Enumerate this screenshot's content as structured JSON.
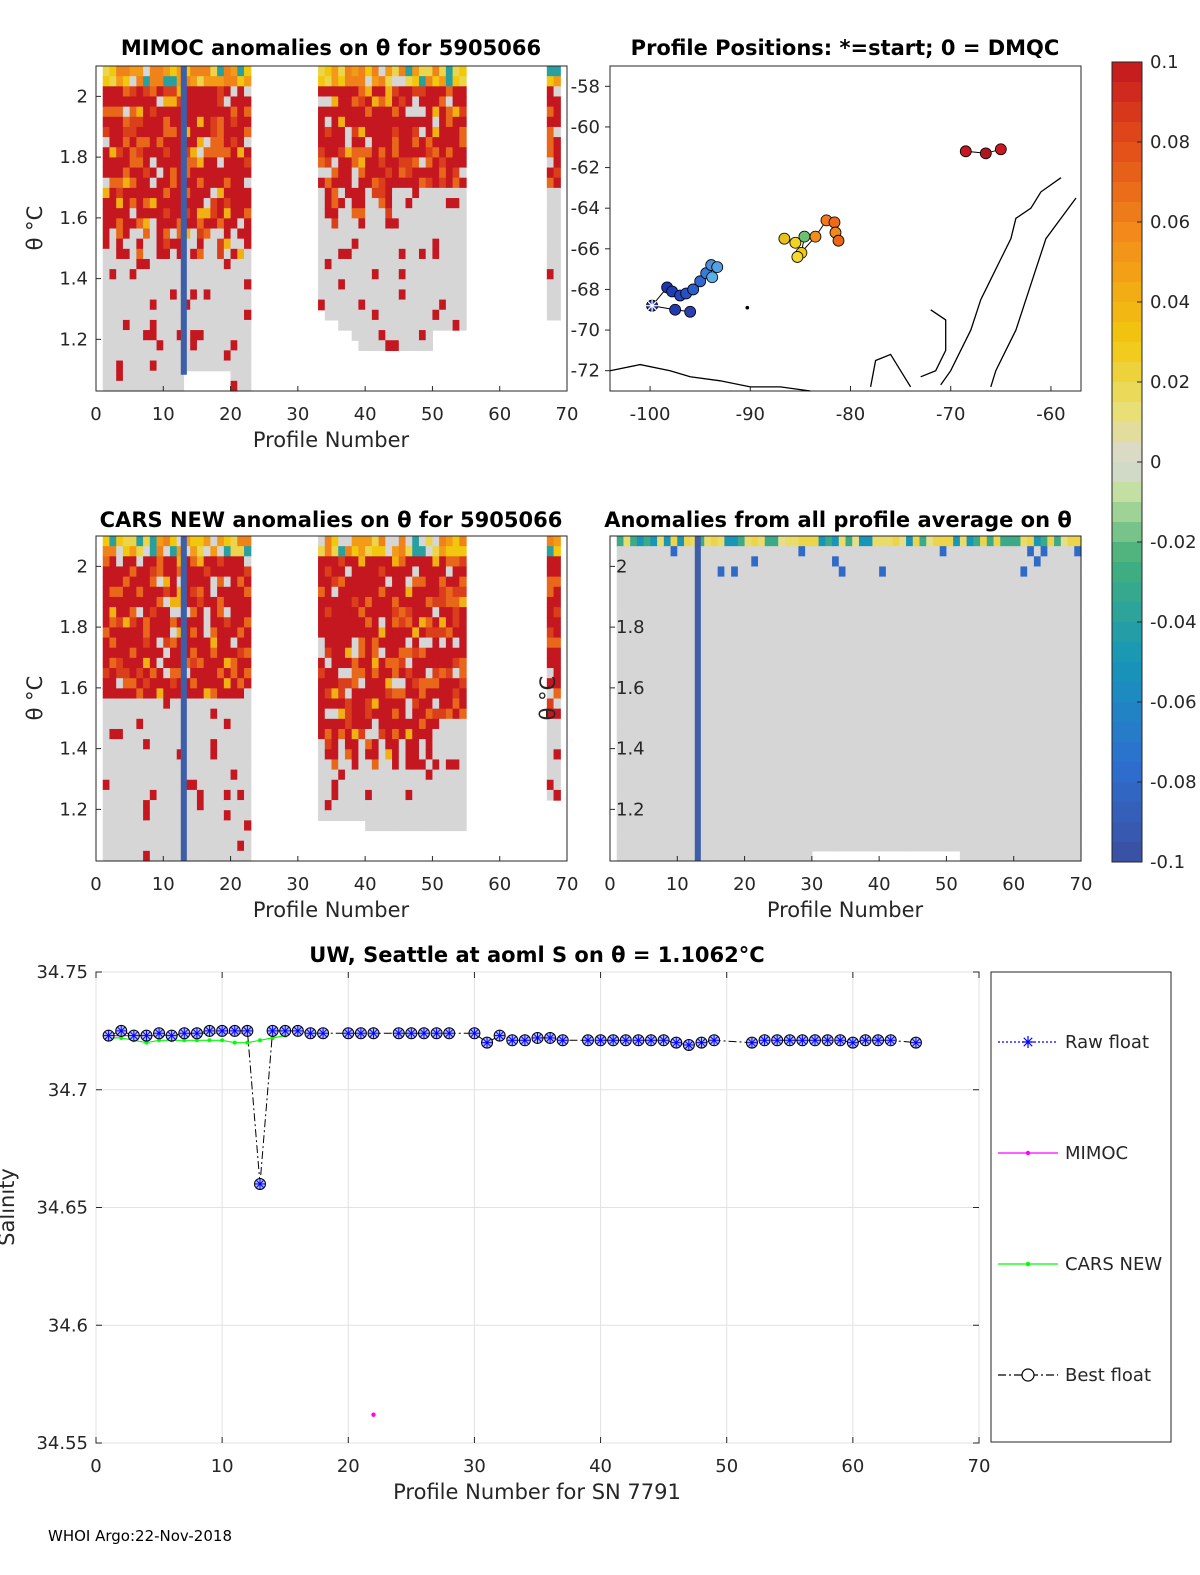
{
  "chart_data": [
    {
      "type": "heatmap",
      "id": "mimoc",
      "title": "MIMOC anomalies on θ  for 5905066",
      "xlabel": "Profile Number",
      "ylabel": "θ °C",
      "xlim": [
        0,
        70
      ],
      "ylim": [
        1.03,
        2.1
      ],
      "xticks": [
        0,
        10,
        20,
        30,
        40,
        50,
        60,
        70
      ],
      "yticks": [
        1.2,
        1.4,
        1.6,
        1.8,
        2.0
      ],
      "ytick_labels": [
        "1.2",
        "1.4",
        "1.6",
        "1.8",
        "2"
      ]
    },
    {
      "type": "scatter",
      "id": "positions",
      "title": "Profile Positions: *=start; 0 = DMQC",
      "xlabel": "",
      "ylabel": "",
      "xlim": [
        -104,
        -57
      ],
      "ylim": [
        -73,
        -57
      ],
      "xticks": [
        -100,
        -90,
        -80,
        -70,
        -60
      ],
      "yticks": [
        -58,
        -60,
        -62,
        -64,
        -66,
        -68,
        -70,
        -72
      ]
    },
    {
      "type": "heatmap",
      "id": "cars",
      "title": "CARS NEW anomalies on θ for 5905066",
      "xlabel": "Profile Number",
      "ylabel": "θ °C",
      "xlim": [
        0,
        70
      ],
      "ylim": [
        1.03,
        2.1
      ],
      "xticks": [
        0,
        10,
        20,
        30,
        40,
        50,
        60,
        70
      ],
      "yticks": [
        1.2,
        1.4,
        1.6,
        1.8,
        2.0
      ],
      "ytick_labels": [
        "1.2",
        "1.4",
        "1.6",
        "1.8",
        "2"
      ]
    },
    {
      "type": "heatmap",
      "id": "avg",
      "title": "Anomalies from all profile average on θ",
      "xlabel": "Profile Number",
      "ylabel": "θ °C",
      "xlim": [
        0,
        70
      ],
      "ylim": [
        1.03,
        2.1
      ],
      "xticks": [
        0,
        10,
        20,
        30,
        40,
        50,
        60,
        70
      ],
      "yticks": [
        1.2,
        1.4,
        1.6,
        1.8,
        2.0
      ],
      "ytick_labels": [
        "1.2",
        "1.4",
        "1.6",
        "1.8",
        "2"
      ]
    },
    {
      "type": "line",
      "id": "salinity",
      "title": "UW, Seattle at aoml S on θ = 1.1062°C",
      "xlabel": "Profile Number for SN 7791",
      "ylabel": "Salinity",
      "xlim": [
        0,
        70
      ],
      "ylim": [
        34.55,
        34.75
      ],
      "xticks": [
        0,
        10,
        20,
        30,
        40,
        50,
        60,
        70
      ],
      "yticks": [
        34.55,
        34.6,
        34.65,
        34.7,
        34.75
      ],
      "grid": true,
      "legend": "right-outside",
      "series": [
        {
          "name": "Raw float",
          "color": "#0000ff",
          "marker": "asterisk",
          "line": "dotted"
        },
        {
          "name": "MIMOC",
          "color": "#ff00ff",
          "marker": "dot",
          "line": "solid"
        },
        {
          "name": "CARS NEW",
          "color": "#00ff00",
          "marker": "dot",
          "line": "solid"
        },
        {
          "name": "Best float",
          "color": "#000000",
          "marker": "circle",
          "line": "dashdot"
        }
      ],
      "x": [
        1,
        2,
        3,
        4,
        5,
        6,
        7,
        8,
        9,
        10,
        11,
        12,
        13,
        14,
        15,
        16,
        17,
        18,
        20,
        21,
        22,
        24,
        25,
        26,
        27,
        28,
        30,
        31,
        32,
        33,
        34,
        35,
        36,
        37,
        39,
        40,
        41,
        42,
        43,
        44,
        45,
        46,
        47,
        48,
        49,
        52,
        53,
        54,
        55,
        56,
        57,
        58,
        59,
        60,
        61,
        62,
        63,
        65
      ],
      "float_values": [
        34.723,
        34.725,
        34.723,
        34.723,
        34.724,
        34.723,
        34.724,
        34.724,
        34.725,
        34.725,
        34.725,
        34.725,
        34.66,
        34.725,
        34.725,
        34.725,
        34.724,
        34.724,
        34.724,
        34.724,
        34.724,
        34.724,
        34.724,
        34.724,
        34.724,
        34.724,
        34.724,
        34.72,
        34.723,
        34.721,
        34.721,
        34.722,
        34.722,
        34.721,
        34.721,
        34.721,
        34.721,
        34.721,
        34.721,
        34.721,
        34.721,
        34.72,
        34.719,
        34.72,
        34.721,
        34.72,
        34.721,
        34.721,
        34.721,
        34.721,
        34.721,
        34.721,
        34.721,
        34.72,
        34.721,
        34.721,
        34.721,
        34.72
      ],
      "mimoc_x": [
        1,
        5,
        9,
        12,
        22
      ],
      "mimoc_values": [
        34.723,
        34.723,
        34.724,
        34.724,
        34.562
      ],
      "cars_x": [
        1,
        2,
        3,
        4,
        5,
        6,
        7,
        8,
        9,
        10,
        11,
        12,
        13,
        14,
        15
      ],
      "cars_values": [
        34.722,
        34.722,
        34.721,
        34.72,
        34.721,
        34.721,
        34.721,
        34.721,
        34.721,
        34.721,
        34.72,
        34.72,
        34.721,
        34.722,
        34.723
      ]
    }
  ],
  "colorbar": {
    "min": -0.1,
    "max": 0.1,
    "tick_labels": [
      "0.1",
      "0.08",
      "0.06",
      "0.04",
      "0.02",
      "0",
      "-0.02",
      "-0.04",
      "-0.06",
      "-0.08",
      "-0.1"
    ]
  },
  "footer": "WHOI Argo:22-Nov-2018"
}
